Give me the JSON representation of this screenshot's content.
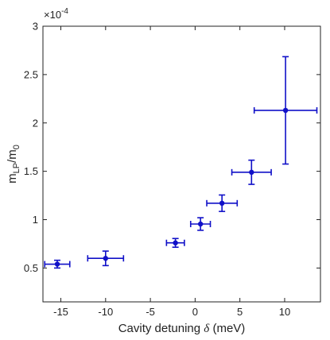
{
  "chart_data": {
    "type": "scatter",
    "x_label_main": "Cavity detuning ",
    "x_label_symbol": "δ",
    "x_label_unit": " (meV)",
    "y_label_base": "m",
    "y_label_sub": "LP",
    "y_label_mid": "/m",
    "y_label_sub2": "0",
    "exponent_base": "×10",
    "exponent_power": "-4",
    "xlim": [
      -17,
      14
    ],
    "ylim": [
      0.15,
      3.0
    ],
    "x_ticks": [
      -15,
      -10,
      -5,
      0,
      5,
      10
    ],
    "x_tick_labels": [
      "-15",
      "-10",
      "-5",
      "0",
      "5",
      "10"
    ],
    "y_ticks": [
      0.5,
      1.0,
      1.5,
      2.0,
      2.5,
      3.0
    ],
    "y_tick_labels": [
      "0.5",
      "1",
      "1.5",
      "2",
      "2.5",
      "3"
    ],
    "grid": false,
    "color": "#1010c8",
    "points": [
      {
        "x": -15.4,
        "y": 0.54,
        "xerr": 1.4,
        "yerr": 0.04
      },
      {
        "x": -10.0,
        "y": 0.6,
        "xerr": 2.0,
        "yerr": 0.075
      },
      {
        "x": -2.2,
        "y": 0.76,
        "xerr": 1.0,
        "yerr": 0.045
      },
      {
        "x": 0.6,
        "y": 0.955,
        "xerr": 1.1,
        "yerr": 0.065
      },
      {
        "x": 3.0,
        "y": 1.17,
        "xerr": 1.7,
        "yerr": 0.085
      },
      {
        "x": 6.3,
        "y": 1.49,
        "xerr": 2.2,
        "yerr": 0.125
      },
      {
        "x": 10.1,
        "y": 2.13,
        "xerr": 3.5,
        "yerr": 0.555
      }
    ]
  }
}
